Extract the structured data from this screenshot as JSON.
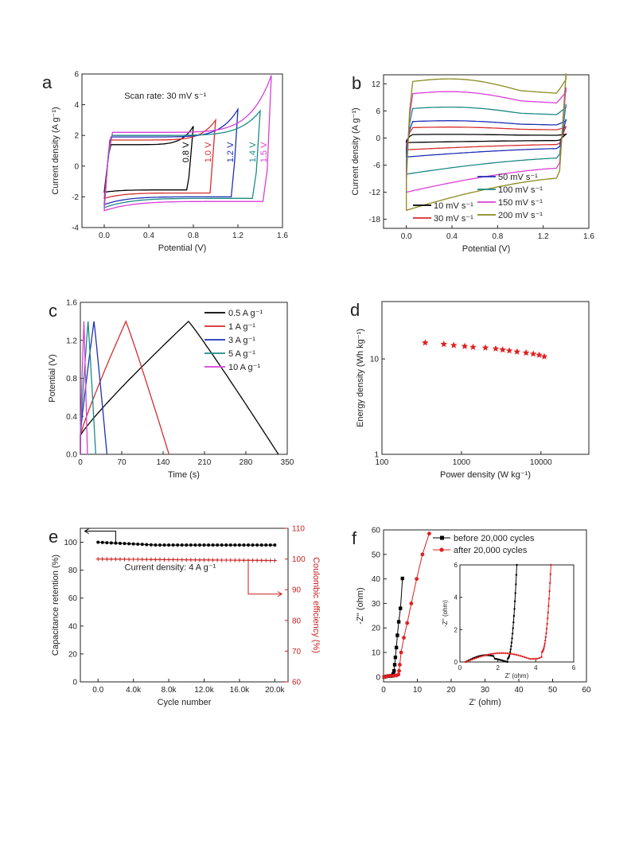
{
  "chart_data": [
    {
      "panel": "a",
      "type": "line",
      "xlabel": "Potential (V)",
      "ylabel": "Current density (A g⁻¹)",
      "xlim": [
        -0.2,
        1.6
      ],
      "ylim": [
        -4,
        6
      ],
      "xticks": [
        "0.0",
        "0.4",
        "0.8",
        "1.2",
        "1.6"
      ],
      "yticks": [
        "-4",
        "-2",
        "0",
        "2",
        "4",
        "6"
      ],
      "annotation": "Scan rate: 30 mV s⁻¹",
      "series": [
        {
          "name": "0.8 V",
          "color": "#000000",
          "vmax": 0.8,
          "upper_plateau": 1.4,
          "peak": 2.6,
          "lower_plateau": -1.55,
          "lower_start": -1.7
        },
        {
          "name": "1.0 V",
          "color": "#d62d2d",
          "vmax": 1.0,
          "upper_plateau": 1.7,
          "peak": 3.0,
          "lower_plateau": -1.75,
          "lower_start": -2.1
        },
        {
          "name": "1.2 V",
          "color": "#1f2fb4",
          "vmax": 1.2,
          "upper_plateau": 1.9,
          "peak": 3.7,
          "lower_plateau": -2.0,
          "lower_start": -2.5
        },
        {
          "name": "1.4 V",
          "color": "#1b8a87",
          "vmax": 1.4,
          "upper_plateau": 2.0,
          "peak": 3.6,
          "lower_plateau": -2.1,
          "lower_start": -2.7
        },
        {
          "name": "1.5 V",
          "color": "#d83fd8",
          "vmax": 1.5,
          "upper_plateau": 2.2,
          "peak": 5.9,
          "lower_plateau": -2.3,
          "lower_start": -2.9
        }
      ]
    },
    {
      "panel": "b",
      "type": "line",
      "xlabel": "Potential (V)",
      "ylabel": "Current density (A g⁻¹)",
      "xlim": [
        -0.2,
        1.6
      ],
      "ylim": [
        -20,
        14
      ],
      "xticks": [
        "0.0",
        "0.4",
        "0.8",
        "1.2",
        "1.6"
      ],
      "yticks": [
        "-18",
        "-12",
        "-6",
        "0",
        "6",
        "12"
      ],
      "series": [
        {
          "name": "10 mV s⁻¹",
          "color": "#000000",
          "upper": 0.8,
          "lower": -1.0
        },
        {
          "name": "30 mV s⁻¹",
          "color": "#d62d2d",
          "upper": 2.4,
          "lower": -2.6
        },
        {
          "name": "50 mV s⁻¹",
          "color": "#1f2fb4",
          "upper": 3.8,
          "lower": -4.2
        },
        {
          "name": "100 mV s⁻¹",
          "color": "#1b8a87",
          "upper": 6.8,
          "lower": -8.0
        },
        {
          "name": "150 mV s⁻¹",
          "color": "#d83fd8",
          "upper": 10.2,
          "lower": -12.0
        },
        {
          "name": "200 mV s⁻¹",
          "color": "#8a8a1e",
          "upper": 13.0,
          "lower": -16.0
        }
      ]
    },
    {
      "panel": "c",
      "type": "line",
      "xlabel": "Time (s)",
      "ylabel": "Potential (V)",
      "xlim": [
        0,
        350
      ],
      "ylim": [
        0,
        1.6
      ],
      "xticks": [
        "0",
        "70",
        "140",
        "210",
        "280",
        "350"
      ],
      "yticks": [
        "0.0",
        "0.4",
        "0.8",
        "1.2",
        "1.6"
      ],
      "series": [
        {
          "name": "0.5 A g⁻¹",
          "color": "#000000",
          "t_peak": 183,
          "t_end": 335
        },
        {
          "name": "1 A g⁻¹",
          "color": "#d62d2d",
          "t_peak": 77,
          "t_end": 150
        },
        {
          "name": "3 A g⁻¹",
          "color": "#1f2fb4",
          "t_peak": 23,
          "t_end": 45
        },
        {
          "name": "5 A g⁻¹",
          "color": "#1b8a87",
          "t_peak": 13,
          "t_end": 26
        },
        {
          "name": "10 A g⁻¹",
          "color": "#d83fd8",
          "t_peak": 6,
          "t_end": 12
        }
      ]
    },
    {
      "panel": "d",
      "type": "scatter",
      "xlabel": "Power density (W kg⁻¹)",
      "ylabel": "Energy density (Wh kg⁻¹)",
      "xscale": "log",
      "yscale": "log",
      "xlim": [
        100,
        40000
      ],
      "ylim": [
        1,
        40
      ],
      "xticks": [
        "100",
        "1000",
        "10000"
      ],
      "yticks": [
        "1",
        "10"
      ],
      "marker_color": "#e02020",
      "x": [
        350,
        600,
        800,
        1100,
        1400,
        2000,
        2700,
        3300,
        4000,
        5000,
        6500,
        8000,
        9500,
        11000
      ],
      "y": [
        14.8,
        14.3,
        13.9,
        13.6,
        13.3,
        13.1,
        12.8,
        12.5,
        12.2,
        11.9,
        11.6,
        11.3,
        11.0,
        10.6
      ]
    },
    {
      "panel": "e",
      "type": "scatter",
      "xlabel": "Cycle number",
      "ylabel": "Capacitance retention (%)",
      "ylabel_right": "Coulombic efficiency (%)",
      "xlim": [
        -2000,
        21500
      ],
      "ylim": [
        0,
        110
      ],
      "ylim_right": [
        60,
        110
      ],
      "xticks": [
        "0.0",
        "4.0k",
        "8.0k",
        "12.0k",
        "16.0k",
        "20.0k"
      ],
      "yticks": [
        "0",
        "20",
        "40",
        "60",
        "80",
        "100"
      ],
      "yticks_right": [
        "60",
        "70",
        "80",
        "90",
        "100",
        "110"
      ],
      "annotation": "Current density: 4 A g⁻¹",
      "series": [
        {
          "name": "Capacitance retention",
          "color": "#000000",
          "start": 100,
          "end": 98
        },
        {
          "name": "Coulombic efficiency",
          "color": "#cc2020",
          "start": 100,
          "end": 99.5
        }
      ]
    },
    {
      "panel": "f",
      "type": "line",
      "xlabel": "Z' (ohm)",
      "ylabel": "-Z'' (ohm)",
      "xlim": [
        0,
        60
      ],
      "ylim": [
        -2,
        60
      ],
      "xticks": [
        "0",
        "10",
        "20",
        "30",
        "40",
        "50",
        "60"
      ],
      "yticks": [
        "0",
        "10",
        "20",
        "30",
        "40",
        "50",
        "60"
      ],
      "inset": {
        "xlabel": "Z' (ohm)",
        "ylabel": "-Z'' (ohm)",
        "xlim": [
          0,
          6
        ],
        "ylim": [
          0,
          6
        ],
        "xticks": [
          "0",
          "2",
          "4",
          "6"
        ],
        "yticks": [
          "0",
          "2",
          "4",
          "6"
        ]
      },
      "series": [
        {
          "name": "before 20,000 cycles",
          "color": "#000000",
          "x": [
            0.2,
            0.8,
            1.5,
            2.2,
            2.6,
            2.9,
            3.1,
            3.3,
            3.5,
            3.8,
            4.1,
            4.5,
            5.0,
            5.6
          ],
          "y": [
            0.0,
            0.2,
            0.4,
            0.4,
            0.6,
            1.2,
            2.5,
            5.0,
            8.0,
            12.0,
            17.0,
            22.5,
            28.0,
            40.2
          ]
        },
        {
          "name": "after 20,000 cycles",
          "color": "#e02020",
          "x": [
            0.2,
            1.0,
            2.0,
            3.0,
            3.8,
            4.4,
            4.6,
            4.8,
            5.2,
            6.0,
            7.0,
            8.2,
            9.8,
            11.5,
            13.5
          ],
          "y": [
            0.0,
            0.3,
            0.5,
            0.5,
            0.6,
            1.0,
            2.5,
            5.0,
            10.0,
            16.0,
            22.0,
            30.0,
            40.0,
            50.0,
            58.5
          ]
        }
      ]
    }
  ]
}
